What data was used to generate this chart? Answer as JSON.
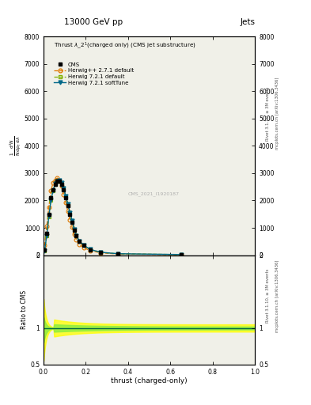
{
  "title": "13000 GeV pp",
  "title_right": "Jets",
  "plot_title": "Thrust $\\lambda\\_2^1$ (charged only) (CMS jet substructure)",
  "xlabel": "thrust (charged-only)",
  "ylabel_ratio": "Ratio to CMS",
  "right_label_top": "Rivet 3.1.10, ≥ 3M events",
  "right_label_bot": "mcplots.cern.ch [arXiv:1306.3436]",
  "watermark": "CMS_2021_I1920187",
  "ylim_main": [
    0,
    8000
  ],
  "ylim_ratio": [
    0.5,
    2.0
  ],
  "xlim": [
    0.0,
    1.0
  ],
  "yticks_main": [
    0,
    1000,
    2000,
    3000,
    4000,
    5000,
    6000,
    7000,
    8000
  ],
  "ytick_labels_main": [
    "0",
    "1000",
    "2000",
    "3000",
    "4000",
    "5000",
    "6000",
    "7000",
    "8000"
  ],
  "yticks_ratio": [
    0.5,
    1.0,
    2.0
  ],
  "ytick_labels_ratio": [
    "0.5",
    "1",
    "2"
  ],
  "bg_color": "#f0f0e8",
  "cms_color": "#000000",
  "herwig1_color": "#e07800",
  "herwig2_color": "#80b000",
  "herwig3_color": "#006888",
  "cms_x": [
    0.005,
    0.015,
    0.025,
    0.035,
    0.045,
    0.055,
    0.065,
    0.075,
    0.085,
    0.095,
    0.105,
    0.115,
    0.125,
    0.135,
    0.145,
    0.155,
    0.17,
    0.19,
    0.22,
    0.27,
    0.35,
    0.65
  ],
  "cms_y": [
    200,
    800,
    1500,
    2100,
    2400,
    2600,
    2700,
    2700,
    2600,
    2400,
    2100,
    1800,
    1500,
    1200,
    900,
    700,
    500,
    350,
    200,
    100,
    50,
    20
  ],
  "hw1_y": [
    350,
    1050,
    1750,
    2350,
    2650,
    2750,
    2820,
    2720,
    2520,
    2220,
    1920,
    1600,
    1300,
    1020,
    760,
    560,
    390,
    275,
    165,
    85,
    42,
    16
  ],
  "hw2_y": [
    150,
    700,
    1400,
    2000,
    2350,
    2600,
    2700,
    2720,
    2650,
    2450,
    2150,
    1850,
    1550,
    1250,
    950,
    720,
    510,
    360,
    210,
    105,
    52,
    22
  ],
  "hw3_y": [
    160,
    720,
    1420,
    2010,
    2360,
    2610,
    2710,
    2730,
    2660,
    2460,
    2160,
    1860,
    1560,
    1260,
    955,
    725,
    515,
    362,
    212,
    106,
    53,
    23
  ]
}
